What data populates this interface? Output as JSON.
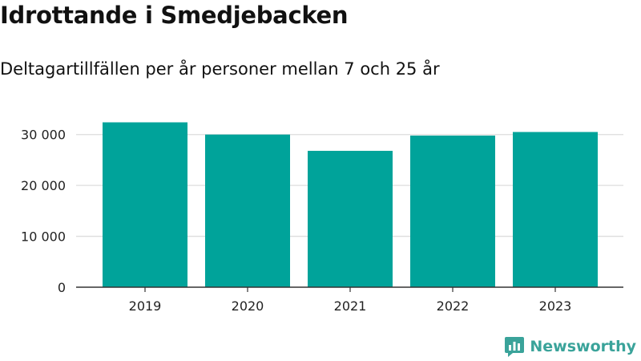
{
  "title": "Idrottande i Smedjebacken",
  "subtitle": "Deltagartillfällen per år personer mellan 7 och 25 år",
  "brand": {
    "name": "Newsworthy",
    "icon": "newsworthy-logo-icon"
  },
  "colors": {
    "bar": "#00a39a",
    "grid": "#dddddd",
    "axis": "#333333",
    "brand": "#3aa39a"
  },
  "chart_data": {
    "type": "bar",
    "categories": [
      "2019",
      "2020",
      "2021",
      "2022",
      "2023"
    ],
    "values": [
      32400,
      30000,
      26800,
      29800,
      30500
    ],
    "ylim": [
      0,
      35000
    ],
    "yticks": [
      0,
      10000,
      20000,
      30000
    ],
    "ytick_labels": [
      "0",
      "10 000",
      "20 000",
      "30 000"
    ],
    "grid": true
  }
}
